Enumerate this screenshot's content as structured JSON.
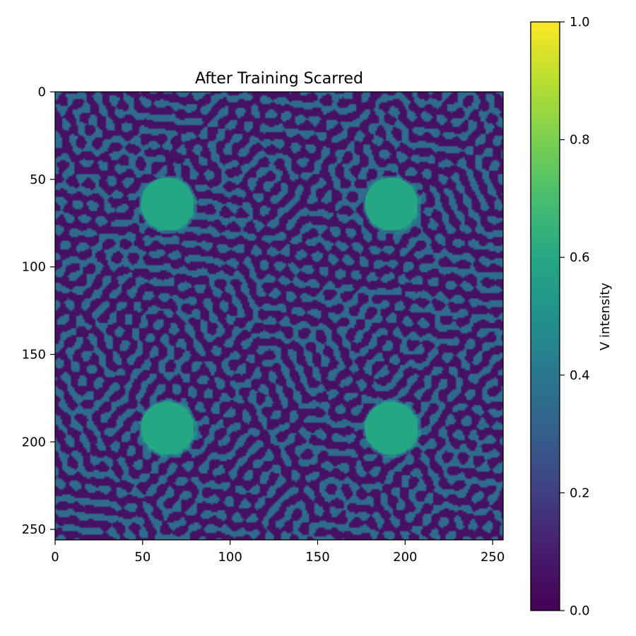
{
  "chart_data": {
    "type": "heatmap",
    "title": "After Training Scarred",
    "xlabel": "",
    "ylabel": "",
    "x_range": [
      0,
      256
    ],
    "y_range": [
      0,
      256
    ],
    "y_inverted": true,
    "x_ticks": [
      0,
      50,
      100,
      150,
      200,
      250
    ],
    "y_ticks": [
      0,
      50,
      100,
      150,
      200,
      250
    ],
    "grid": false,
    "colormap": "viridis",
    "colorbar": {
      "label": "V intensity",
      "range": [
        0.0,
        1.0
      ],
      "ticks": [
        "0.0",
        "0.2",
        "0.4",
        "0.6",
        "0.8",
        "1.0"
      ],
      "colors": [
        "#440154",
        "#3b528b",
        "#21918c",
        "#5ec962",
        "#fde725"
      ]
    },
    "background_levels": {
      "trough": 0.06,
      "stripe": 0.35
    },
    "scar_spots": [
      {
        "x": 64,
        "y": 64,
        "radius": 15,
        "value": 0.6
      },
      {
        "x": 192,
        "y": 64,
        "radius": 15,
        "value": 0.6
      },
      {
        "x": 64,
        "y": 192,
        "radius": 15,
        "value": 0.6
      },
      {
        "x": 192,
        "y": 192,
        "radius": 15,
        "value": 0.6
      }
    ]
  }
}
